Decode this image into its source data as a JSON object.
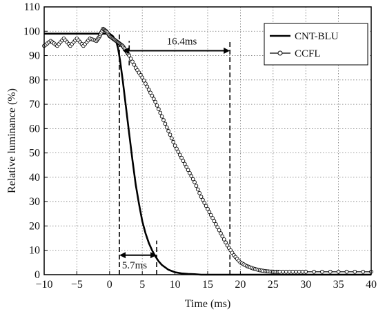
{
  "chart_data": {
    "type": "line",
    "title": "",
    "xlabel": "Time (ms)",
    "ylabel": "Relative luminance (%)",
    "xlim": [
      -10,
      40
    ],
    "ylim": [
      0,
      110
    ],
    "x_ticks": [
      "-10",
      "-5",
      "0",
      "5",
      "10",
      "15",
      "20",
      "25",
      "30",
      "35",
      "40"
    ],
    "y_ticks": [
      "0",
      "10",
      "20",
      "30",
      "40",
      "50",
      "60",
      "70",
      "80",
      "90",
      "100",
      "110"
    ],
    "grid": true,
    "legend_position": "top-right",
    "series": [
      {
        "name": "CNT-BLU",
        "color": "#000000",
        "marker": "none",
        "x": [
          -10,
          -5,
          -2,
          -1,
          0,
          0.5,
          1,
          1.3,
          1.6,
          2,
          2.5,
          3,
          3.5,
          4,
          4.5,
          5,
          5.5,
          6,
          6.5,
          7,
          7.5,
          8,
          9,
          10,
          11,
          12,
          13,
          14,
          16,
          20,
          25,
          30,
          35,
          40
        ],
        "y": [
          99,
          99,
          99,
          99,
          99,
          98,
          96,
          93,
          88,
          80,
          69,
          58,
          47,
          37,
          29,
          22,
          17,
          13,
          10,
          7.5,
          5.5,
          4,
          2,
          1,
          0.5,
          0.3,
          0.2,
          0,
          0,
          0,
          0,
          0,
          0,
          0
        ]
      },
      {
        "name": "CCFL",
        "color": "#000000",
        "marker": "circle",
        "x": [
          -10,
          -9,
          -8,
          -7,
          -6,
          -5,
          -4,
          -3,
          -2,
          -1.5,
          -1,
          -0.5,
          0,
          0.5,
          1,
          1.5,
          2,
          2.5,
          3,
          4,
          5,
          6,
          7,
          8,
          9,
          10,
          11,
          12,
          13,
          14,
          15,
          16,
          17,
          18,
          19,
          20,
          21,
          22,
          23,
          24,
          25,
          26,
          28,
          30,
          35,
          40
        ],
        "y": [
          94,
          96,
          94,
          97,
          94,
          97,
          94,
          97,
          96,
          98,
          101,
          100,
          98,
          97,
          96,
          95,
          94,
          92,
          90,
          85,
          81,
          76,
          71,
          65,
          59,
          53,
          48,
          43,
          38,
          32,
          27,
          22,
          17,
          12,
          8,
          5,
          3.5,
          2.5,
          1.8,
          1.4,
          1.2,
          1.2,
          1.2,
          1.2,
          1.2,
          1.2
        ]
      }
    ],
    "annotations": [
      {
        "text": "16.4ms",
        "x_from": 2,
        "x_to": 18.4,
        "y": 92
      },
      {
        "text": "5.7ms",
        "x_from": 1.5,
        "x_to": 7.2,
        "y": 8
      }
    ],
    "reference_lines": [
      {
        "x": 1.5,
        "y_from": 0,
        "y_to": 99
      },
      {
        "x": 7.2,
        "y_from": 0,
        "y_to": 14
      },
      {
        "x": 3,
        "y_from": 86,
        "y_to": 96
      },
      {
        "x": 18.4,
        "y_from": 0,
        "y_to": 96
      }
    ]
  }
}
